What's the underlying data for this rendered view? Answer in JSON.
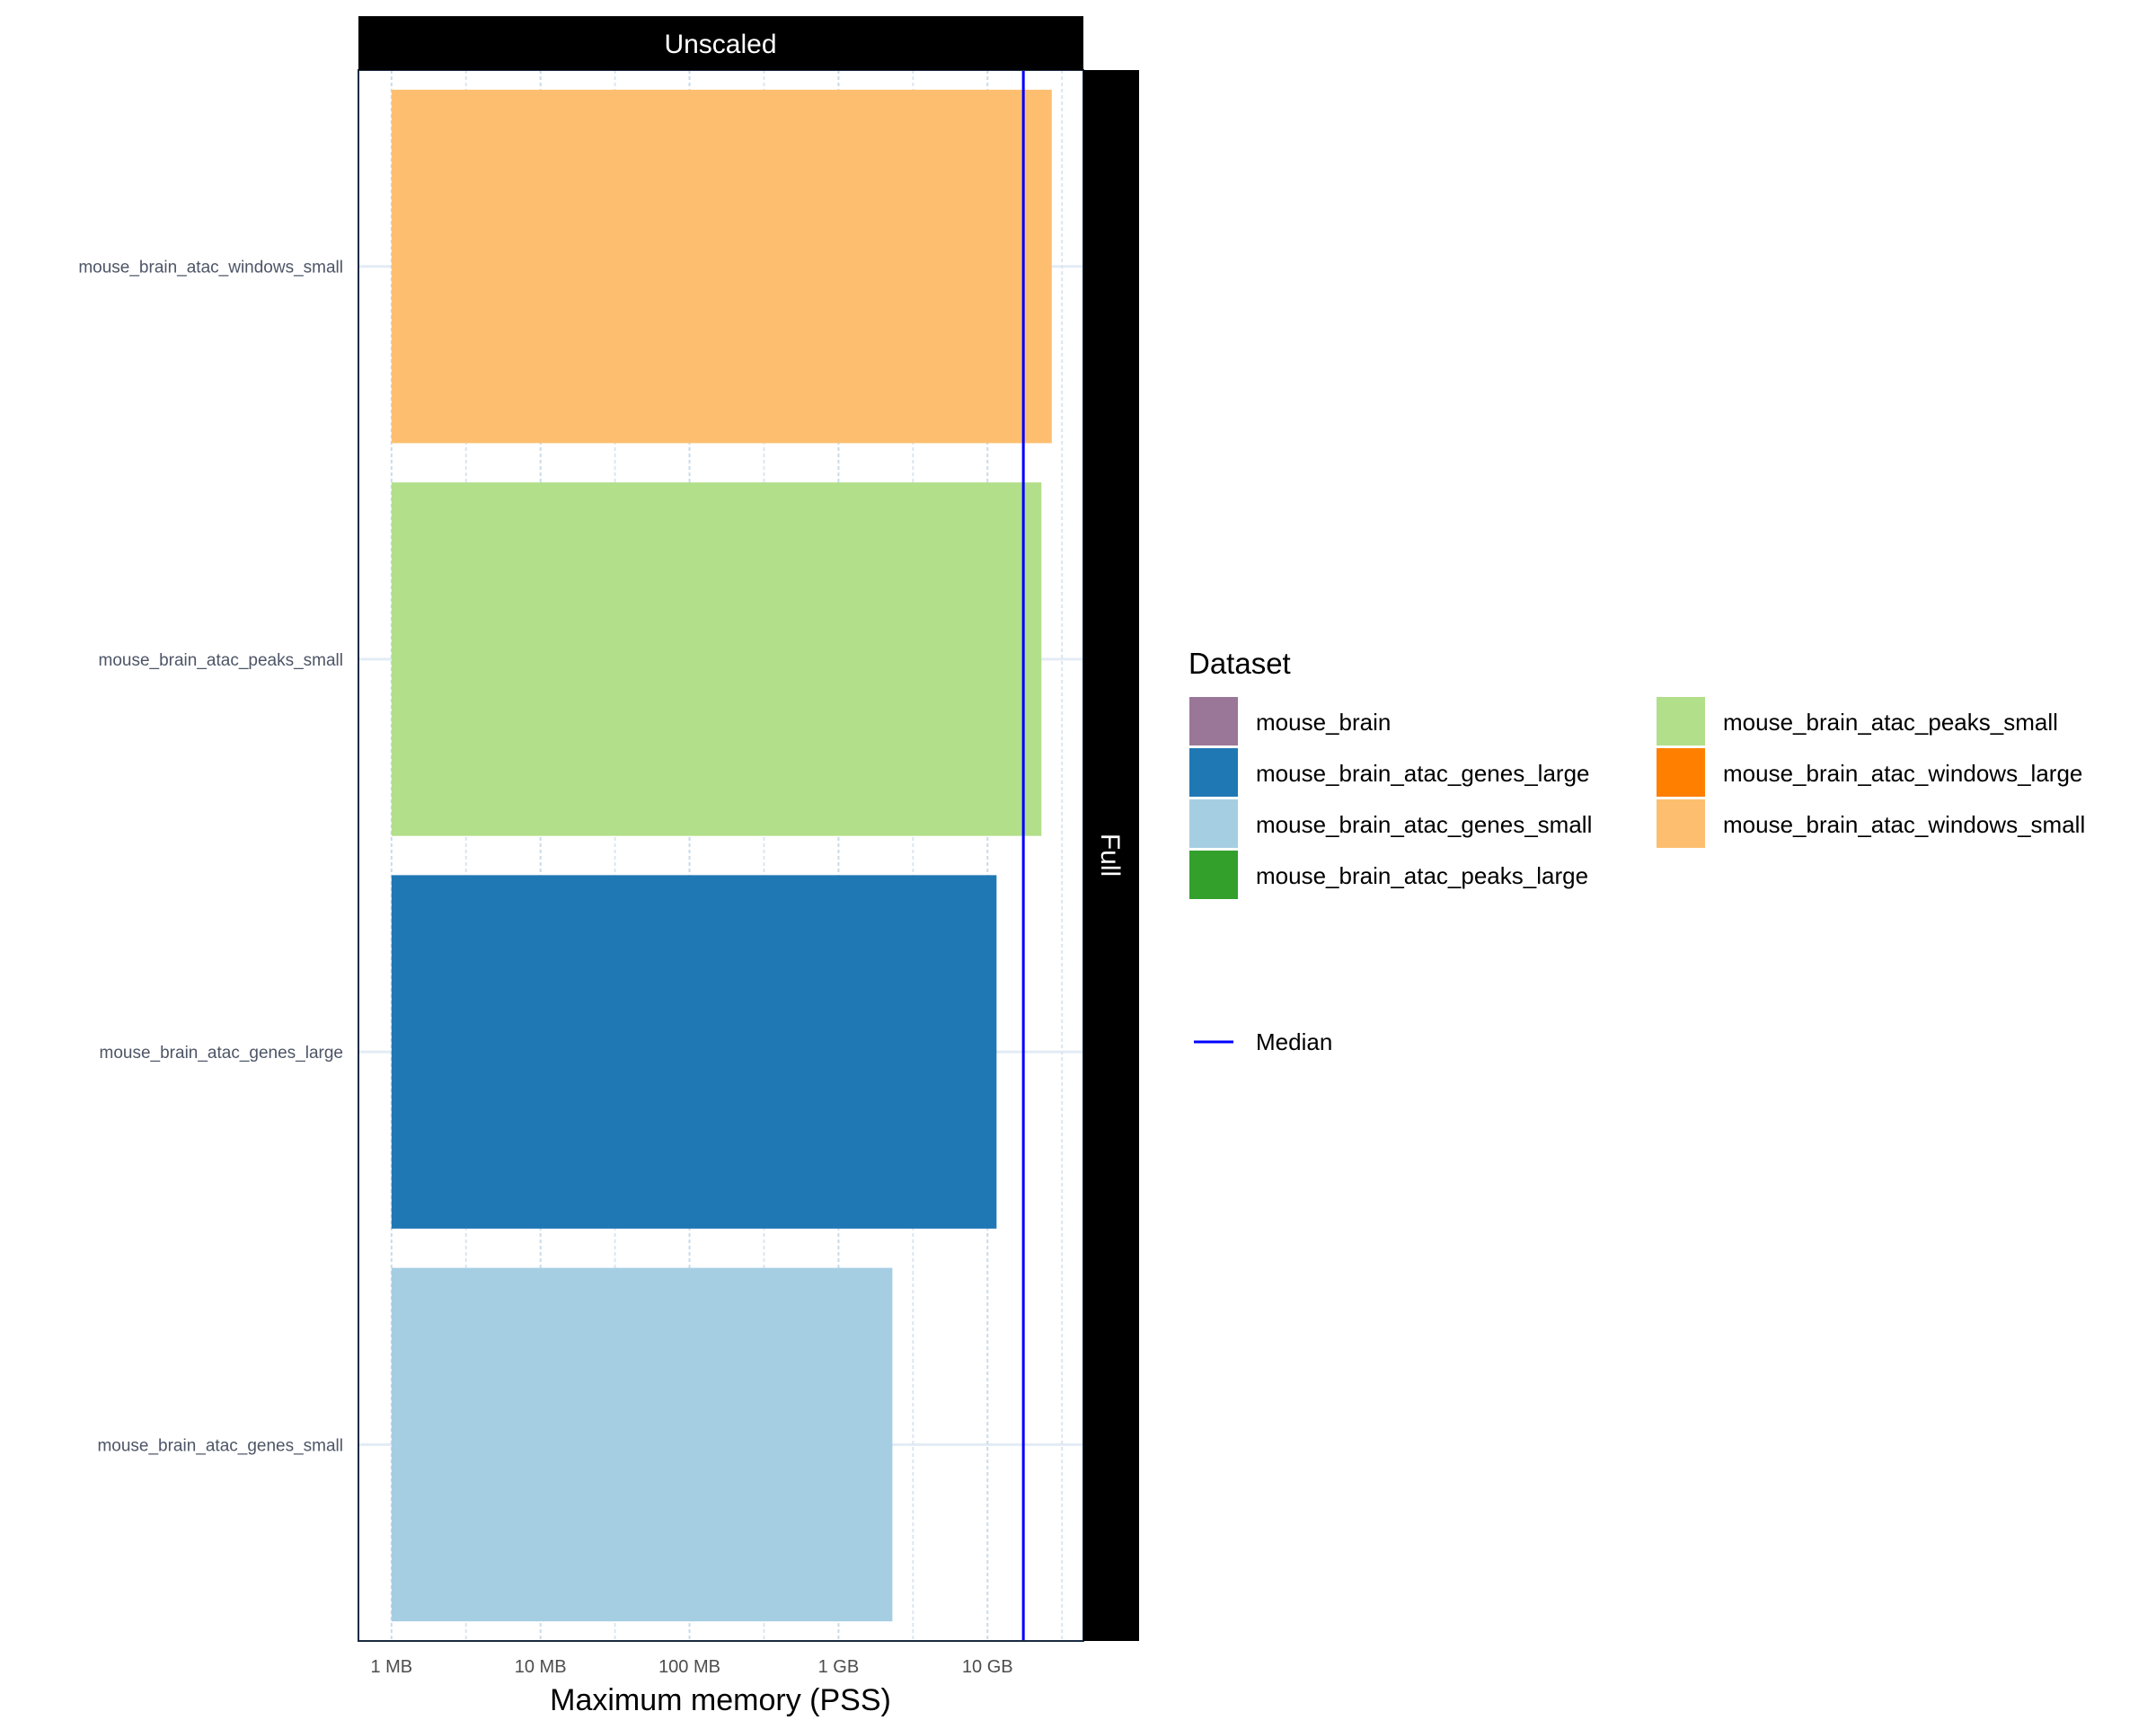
{
  "chart_data": {
    "type": "bar",
    "orientation": "horizontal",
    "facet_top": "Unscaled",
    "facet_right": "Full",
    "xlabel": "Maximum memory (PSS)",
    "ylabel": "",
    "x_scale": "log10",
    "x_unit": "MB",
    "xlim": [
      0.6,
      44000
    ],
    "x_ticks": [
      {
        "value": 1,
        "label": "1 MB"
      },
      {
        "value": 10,
        "label": "10 MB"
      },
      {
        "value": 100,
        "label": "100 MB"
      },
      {
        "value": 1000,
        "label": "1 GB"
      },
      {
        "value": 10000,
        "label": "10 GB"
      }
    ],
    "grid": true,
    "categories": [
      "mouse_brain_atac_windows_small",
      "mouse_brain_atac_peaks_small",
      "mouse_brain_atac_genes_large",
      "mouse_brain_atac_genes_small"
    ],
    "values": [
      27000,
      23000,
      11500,
      2300
    ],
    "bar_colors": [
      "#FDBF6F",
      "#B2DF8A",
      "#1F78B4",
      "#A6CEE3"
    ],
    "median": {
      "value": 17400,
      "label": "Median",
      "color": "#0000FF"
    },
    "legend": {
      "title": "Dataset",
      "placement": "right",
      "items": [
        {
          "label": "mouse_brain",
          "color": "#9A7799"
        },
        {
          "label": "mouse_brain_atac_genes_large",
          "color": "#1F78B4"
        },
        {
          "label": "mouse_brain_atac_genes_small",
          "color": "#A6CEE3"
        },
        {
          "label": "mouse_brain_atac_peaks_large",
          "color": "#33A02C"
        },
        {
          "label": "mouse_brain_atac_peaks_small",
          "color": "#B2DF8A"
        },
        {
          "label": "mouse_brain_atac_windows_large",
          "color": "#FF7F00"
        },
        {
          "label": "mouse_brain_atac_windows_small",
          "color": "#FDBF6F"
        }
      ]
    }
  }
}
